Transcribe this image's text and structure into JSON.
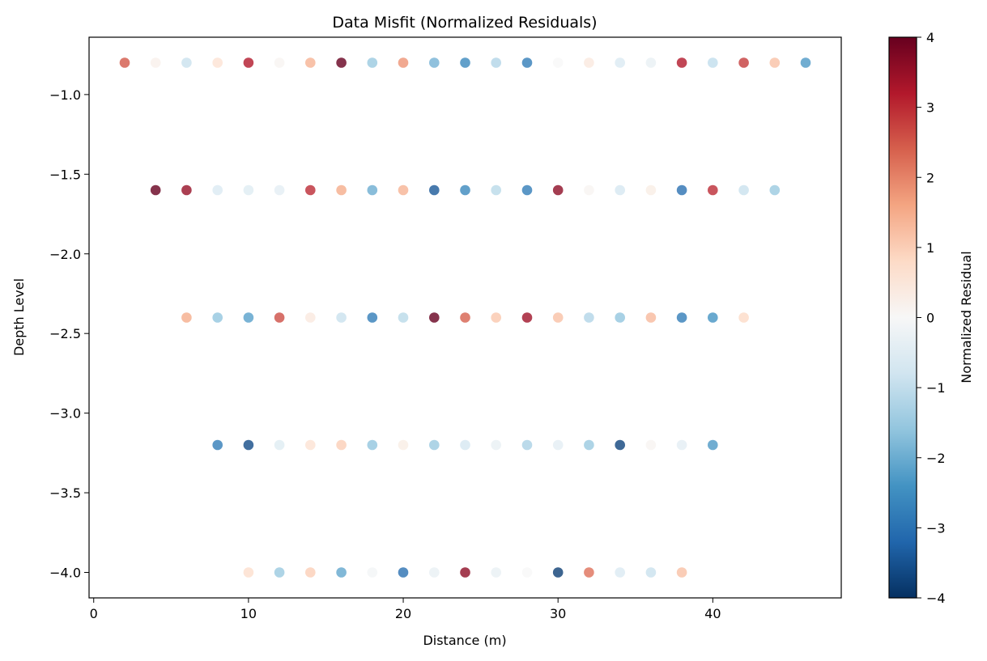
{
  "chart_data": {
    "type": "scatter",
    "title": "Data Misfit (Normalized Residuals)",
    "xlabel": "Distance (m)",
    "ylabel": "Depth Level",
    "xlim": [
      -0.3,
      48.3
    ],
    "ylim": [
      -4.16,
      -0.64
    ],
    "xticks": [
      0,
      10,
      20,
      30,
      40
    ],
    "yticks": [
      -1.0,
      -1.5,
      -2.0,
      -2.5,
      -3.0,
      -3.5,
      -4.0
    ],
    "xtick_labels": [
      "0",
      "10",
      "20",
      "30",
      "40"
    ],
    "ytick_labels": [
      "−1.0",
      "−1.5",
      "−2.0",
      "−2.5",
      "−3.0",
      "−3.5",
      "−4.0"
    ],
    "colormap": "RdBu_r",
    "colorbar": {
      "label": "Normalized Residual",
      "range": [
        -4,
        4
      ],
      "ticks": [
        4,
        3,
        2,
        1,
        0,
        -1,
        -2,
        -3,
        -4
      ],
      "tick_labels": [
        "4",
        "3",
        "2",
        "1",
        "0",
        "−1",
        "−2",
        "−3",
        "−4"
      ]
    },
    "grid": false,
    "points": [
      {
        "x": 2,
        "y": -0.8,
        "v": 2.5
      },
      {
        "x": 4,
        "y": -0.8,
        "v": 0.2
      },
      {
        "x": 6,
        "y": -0.8,
        "v": -0.9
      },
      {
        "x": 8,
        "y": -0.8,
        "v": 0.6
      },
      {
        "x": 10,
        "y": -0.8,
        "v": 3.2
      },
      {
        "x": 12,
        "y": -0.8,
        "v": 0.1
      },
      {
        "x": 14,
        "y": -0.8,
        "v": 1.4
      },
      {
        "x": 16,
        "y": -0.8,
        "v": 4.0
      },
      {
        "x": 18,
        "y": -0.8,
        "v": -1.5
      },
      {
        "x": 20,
        "y": -0.8,
        "v": 1.8
      },
      {
        "x": 22,
        "y": -0.8,
        "v": -1.9
      },
      {
        "x": 24,
        "y": -0.8,
        "v": -2.6
      },
      {
        "x": 26,
        "y": -0.8,
        "v": -1.2
      },
      {
        "x": 28,
        "y": -0.8,
        "v": -2.8
      },
      {
        "x": 30,
        "y": -0.8,
        "v": 0.0
      },
      {
        "x": 32,
        "y": -0.8,
        "v": 0.4
      },
      {
        "x": 34,
        "y": -0.8,
        "v": -0.6
      },
      {
        "x": 36,
        "y": -0.8,
        "v": -0.3
      },
      {
        "x": 38,
        "y": -0.8,
        "v": 3.2
      },
      {
        "x": 40,
        "y": -0.8,
        "v": -1.0
      },
      {
        "x": 42,
        "y": -0.8,
        "v": 2.8
      },
      {
        "x": 44,
        "y": -0.8,
        "v": 1.2
      },
      {
        "x": 46,
        "y": -0.8,
        "v": -2.3
      },
      {
        "x": 4,
        "y": -1.6,
        "v": 4.0
      },
      {
        "x": 6,
        "y": -1.6,
        "v": 3.5
      },
      {
        "x": 8,
        "y": -1.6,
        "v": -0.6
      },
      {
        "x": 10,
        "y": -1.6,
        "v": -0.5
      },
      {
        "x": 12,
        "y": -1.6,
        "v": -0.4
      },
      {
        "x": 14,
        "y": -1.6,
        "v": 3.0
      },
      {
        "x": 16,
        "y": -1.6,
        "v": 1.5
      },
      {
        "x": 18,
        "y": -1.6,
        "v": -2.0
      },
      {
        "x": 20,
        "y": -1.6,
        "v": 1.4
      },
      {
        "x": 22,
        "y": -1.6,
        "v": -3.4
      },
      {
        "x": 24,
        "y": -1.6,
        "v": -2.6
      },
      {
        "x": 26,
        "y": -1.6,
        "v": -1.1
      },
      {
        "x": 28,
        "y": -1.6,
        "v": -2.8
      },
      {
        "x": 30,
        "y": -1.6,
        "v": 3.6
      },
      {
        "x": 32,
        "y": -1.6,
        "v": 0.1
      },
      {
        "x": 34,
        "y": -1.6,
        "v": -0.7
      },
      {
        "x": 36,
        "y": -1.6,
        "v": 0.3
      },
      {
        "x": 38,
        "y": -1.6,
        "v": -3.0
      },
      {
        "x": 40,
        "y": -1.6,
        "v": 3.0
      },
      {
        "x": 42,
        "y": -1.6,
        "v": -0.9
      },
      {
        "x": 44,
        "y": -1.6,
        "v": -1.5
      },
      {
        "x": 6,
        "y": -2.4,
        "v": 1.5
      },
      {
        "x": 8,
        "y": -2.4,
        "v": -1.6
      },
      {
        "x": 10,
        "y": -2.4,
        "v": -2.2
      },
      {
        "x": 12,
        "y": -2.4,
        "v": 2.6
      },
      {
        "x": 14,
        "y": -2.4,
        "v": 0.4
      },
      {
        "x": 16,
        "y": -2.4,
        "v": -0.9
      },
      {
        "x": 18,
        "y": -2.4,
        "v": -2.8
      },
      {
        "x": 20,
        "y": -2.4,
        "v": -1.1
      },
      {
        "x": 22,
        "y": -2.4,
        "v": 4.0
      },
      {
        "x": 24,
        "y": -2.4,
        "v": 2.4
      },
      {
        "x": 26,
        "y": -2.4,
        "v": 1.1
      },
      {
        "x": 28,
        "y": -2.4,
        "v": 3.4
      },
      {
        "x": 30,
        "y": -2.4,
        "v": 1.2
      },
      {
        "x": 32,
        "y": -2.4,
        "v": -1.2
      },
      {
        "x": 34,
        "y": -2.4,
        "v": -1.6
      },
      {
        "x": 36,
        "y": -2.4,
        "v": 1.3
      },
      {
        "x": 38,
        "y": -2.4,
        "v": -2.8
      },
      {
        "x": 40,
        "y": -2.4,
        "v": -2.4
      },
      {
        "x": 42,
        "y": -2.4,
        "v": 0.8
      },
      {
        "x": 8,
        "y": -3.2,
        "v": -2.8
      },
      {
        "x": 10,
        "y": -3.2,
        "v": -3.6
      },
      {
        "x": 12,
        "y": -3.2,
        "v": -0.5
      },
      {
        "x": 14,
        "y": -3.2,
        "v": 0.6
      },
      {
        "x": 16,
        "y": -3.2,
        "v": 1.0
      },
      {
        "x": 18,
        "y": -3.2,
        "v": -1.6
      },
      {
        "x": 20,
        "y": -3.2,
        "v": 0.3
      },
      {
        "x": 22,
        "y": -3.2,
        "v": -1.5
      },
      {
        "x": 24,
        "y": -3.2,
        "v": -0.7
      },
      {
        "x": 26,
        "y": -3.2,
        "v": -0.3
      },
      {
        "x": 28,
        "y": -3.2,
        "v": -1.3
      },
      {
        "x": 30,
        "y": -3.2,
        "v": -0.4
      },
      {
        "x": 32,
        "y": -3.2,
        "v": -1.5
      },
      {
        "x": 34,
        "y": -3.2,
        "v": -3.7
      },
      {
        "x": 36,
        "y": -3.2,
        "v": 0.1
      },
      {
        "x": 38,
        "y": -3.2,
        "v": -0.4
      },
      {
        "x": 40,
        "y": -3.2,
        "v": -2.3
      },
      {
        "x": 10,
        "y": -4.0,
        "v": 0.7
      },
      {
        "x": 12,
        "y": -4.0,
        "v": -1.5
      },
      {
        "x": 14,
        "y": -4.0,
        "v": 1.0
      },
      {
        "x": 16,
        "y": -4.0,
        "v": -2.1
      },
      {
        "x": 18,
        "y": -4.0,
        "v": -0.1
      },
      {
        "x": 20,
        "y": -4.0,
        "v": -3.0
      },
      {
        "x": 22,
        "y": -4.0,
        "v": -0.3
      },
      {
        "x": 24,
        "y": -4.0,
        "v": 3.6
      },
      {
        "x": 26,
        "y": -4.0,
        "v": -0.3
      },
      {
        "x": 28,
        "y": -4.0,
        "v": 0.0
      },
      {
        "x": 30,
        "y": -4.0,
        "v": -3.8
      },
      {
        "x": 32,
        "y": -4.0,
        "v": 2.2
      },
      {
        "x": 34,
        "y": -4.0,
        "v": -0.6
      },
      {
        "x": 36,
        "y": -4.0,
        "v": -0.9
      },
      {
        "x": 38,
        "y": -4.0,
        "v": 1.2
      }
    ]
  }
}
